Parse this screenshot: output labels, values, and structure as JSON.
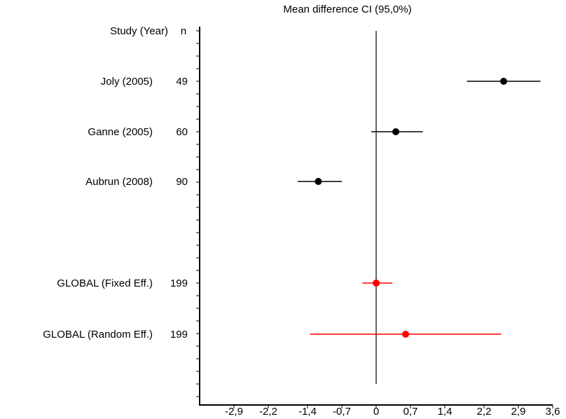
{
  "chart_data": {
    "type": "forest",
    "title": "Mean difference CI  (95,0%)",
    "header": {
      "study_label": "Study  (Year)",
      "n_label": "n"
    },
    "xticks": [
      -2.9,
      -2.2,
      -1.4,
      -0.7,
      0,
      0.7,
      1.4,
      2.2,
      2.9,
      3.6
    ],
    "xtick_labels": [
      "-2,9",
      "-2,2",
      "-1,4",
      "-0,7",
      "0",
      "0,7",
      "1,4",
      "2,2",
      "2,9",
      "3,6"
    ],
    "xlim": [
      -3.6,
      3.6
    ],
    "reference_line": 0,
    "studies": [
      {
        "name": "Joly (2005)",
        "n": "49",
        "estimate": 2.6,
        "lower": 1.85,
        "upper": 3.35,
        "color": "#000000"
      },
      {
        "name": "Ganne (2005)",
        "n": "60",
        "estimate": 0.4,
        "lower": -0.1,
        "upper": 0.95,
        "color": "#000000"
      },
      {
        "name": "Aubrun  (2008)",
        "n": "90",
        "estimate": -1.18,
        "lower": -1.6,
        "upper": -0.7,
        "color": "#000000"
      }
    ],
    "pooled": [
      {
        "name": "GLOBAL (Fixed Eff.)",
        "n": "199",
        "estimate": 0.0,
        "lower": -0.28,
        "upper": 0.33,
        "color": "#ff0000"
      },
      {
        "name": "GLOBAL (Random Eff.)",
        "n": "199",
        "estimate": 0.6,
        "lower": -1.35,
        "upper": 2.55,
        "color": "#ff0000"
      }
    ]
  }
}
